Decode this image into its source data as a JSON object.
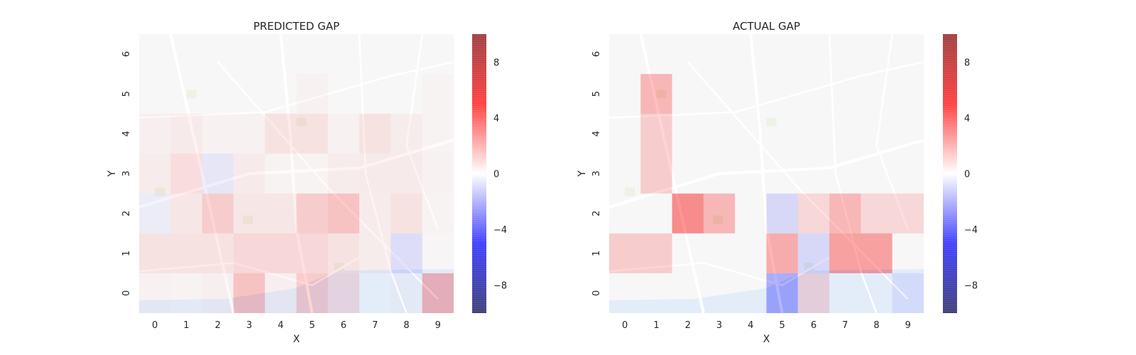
{
  "chart_data": [
    {
      "type": "heatmap",
      "title": "PREDICTED GAP",
      "xlabel": "X",
      "ylabel": "Y",
      "x_ticks": [
        0,
        1,
        2,
        3,
        4,
        5,
        6,
        7,
        8,
        9
      ],
      "y_ticks": [
        0,
        1,
        2,
        3,
        4,
        5,
        6
      ],
      "value_range": [
        -10,
        10
      ],
      "colorbar_ticks": [
        -8,
        -4,
        0,
        4,
        8
      ],
      "colormap": "seismic",
      "background": "street-map",
      "cells": [
        {
          "x": 0,
          "y": 0,
          "value": 0.3
        },
        {
          "x": 1,
          "y": 0,
          "value": 0.2
        },
        {
          "x": 2,
          "y": 0,
          "value": 0.4
        },
        {
          "x": 3,
          "y": 0,
          "value": 2.5
        },
        {
          "x": 4,
          "y": 0,
          "value": 0.4
        },
        {
          "x": 5,
          "y": 0,
          "value": 2.0
        },
        {
          "x": 6,
          "y": 0,
          "value": 1.2
        },
        {
          "x": 7,
          "y": 0,
          "value": 0.0
        },
        {
          "x": 8,
          "y": 0,
          "value": 0.2
        },
        {
          "x": 9,
          "y": 0,
          "value": 3.0
        },
        {
          "x": 0,
          "y": 1,
          "value": 1.0
        },
        {
          "x": 1,
          "y": 1,
          "value": 1.0
        },
        {
          "x": 2,
          "y": 1,
          "value": 1.0
        },
        {
          "x": 3,
          "y": 1,
          "value": 1.5
        },
        {
          "x": 4,
          "y": 1,
          "value": 1.5
        },
        {
          "x": 5,
          "y": 1,
          "value": 1.5
        },
        {
          "x": 6,
          "y": 1,
          "value": 1.0
        },
        {
          "x": 7,
          "y": 1,
          "value": 0.5
        },
        {
          "x": 8,
          "y": 1,
          "value": -1.2
        },
        {
          "x": 9,
          "y": 1,
          "value": 0.1
        },
        {
          "x": 0,
          "y": 2,
          "value": -0.5
        },
        {
          "x": 1,
          "y": 2,
          "value": 0.8
        },
        {
          "x": 2,
          "y": 2,
          "value": 2.0
        },
        {
          "x": 3,
          "y": 2,
          "value": 0.8
        },
        {
          "x": 4,
          "y": 2,
          "value": 0.8
        },
        {
          "x": 5,
          "y": 2,
          "value": 2.0
        },
        {
          "x": 6,
          "y": 2,
          "value": 2.5
        },
        {
          "x": 7,
          "y": 2,
          "value": 0.5
        },
        {
          "x": 8,
          "y": 2,
          "value": 1.0
        },
        {
          "x": 9,
          "y": 2,
          "value": 0.2
        },
        {
          "x": 0,
          "y": 3,
          "value": 0.5
        },
        {
          "x": 1,
          "y": 3,
          "value": 1.2
        },
        {
          "x": 2,
          "y": 3,
          "value": -0.8
        },
        {
          "x": 3,
          "y": 3,
          "value": 0.6
        },
        {
          "x": 4,
          "y": 3,
          "value": 0.2
        },
        {
          "x": 5,
          "y": 3,
          "value": 0.2
        },
        {
          "x": 6,
          "y": 3,
          "value": 0.5
        },
        {
          "x": 7,
          "y": 3,
          "value": 0.6
        },
        {
          "x": 8,
          "y": 3,
          "value": 0.6
        },
        {
          "x": 9,
          "y": 3,
          "value": 0.3
        },
        {
          "x": 0,
          "y": 4,
          "value": 0.4
        },
        {
          "x": 1,
          "y": 4,
          "value": 0.6
        },
        {
          "x": 2,
          "y": 4,
          "value": 0.3
        },
        {
          "x": 3,
          "y": 4,
          "value": 0.3
        },
        {
          "x": 4,
          "y": 4,
          "value": 1.0
        },
        {
          "x": 5,
          "y": 4,
          "value": 1.0
        },
        {
          "x": 6,
          "y": 4,
          "value": 0.3
        },
        {
          "x": 7,
          "y": 4,
          "value": 1.0
        },
        {
          "x": 8,
          "y": 4,
          "value": 0.5
        },
        {
          "x": 9,
          "y": 4,
          "value": 0.2
        },
        {
          "x": 0,
          "y": 5,
          "value": 0.0
        },
        {
          "x": 1,
          "y": 5,
          "value": 0.0
        },
        {
          "x": 2,
          "y": 5,
          "value": 0.0
        },
        {
          "x": 3,
          "y": 5,
          "value": 0.0
        },
        {
          "x": 4,
          "y": 5,
          "value": 0.0
        },
        {
          "x": 5,
          "y": 5,
          "value": 0.3
        },
        {
          "x": 6,
          "y": 5,
          "value": 0.0
        },
        {
          "x": 7,
          "y": 5,
          "value": 0.0
        },
        {
          "x": 8,
          "y": 5,
          "value": 0.0
        },
        {
          "x": 9,
          "y": 5,
          "value": 0.2
        },
        {
          "x": 0,
          "y": 6,
          "value": 0.0
        },
        {
          "x": 1,
          "y": 6,
          "value": 0.0
        },
        {
          "x": 2,
          "y": 6,
          "value": 0.0
        },
        {
          "x": 3,
          "y": 6,
          "value": 0.0
        },
        {
          "x": 4,
          "y": 6,
          "value": 0.0
        },
        {
          "x": 5,
          "y": 6,
          "value": 0.0
        },
        {
          "x": 6,
          "y": 6,
          "value": 0.0
        },
        {
          "x": 7,
          "y": 6,
          "value": 0.0
        },
        {
          "x": 8,
          "y": 6,
          "value": 0.0
        },
        {
          "x": 9,
          "y": 6,
          "value": 0.0
        }
      ]
    },
    {
      "type": "heatmap",
      "title": "ACTUAL GAP",
      "xlabel": "X",
      "ylabel": "Y",
      "x_ticks": [
        0,
        1,
        2,
        3,
        4,
        5,
        6,
        7,
        8,
        9
      ],
      "y_ticks": [
        0,
        1,
        2,
        3,
        4,
        5,
        6
      ],
      "value_range": [
        -10,
        10
      ],
      "colorbar_ticks": [
        -8,
        -4,
        0,
        4,
        8
      ],
      "colormap": "seismic",
      "background": "street-map",
      "cells": [
        {
          "x": 0,
          "y": 0,
          "value": 0.0
        },
        {
          "x": 1,
          "y": 0,
          "value": 0.0
        },
        {
          "x": 2,
          "y": 0,
          "value": 0.0
        },
        {
          "x": 3,
          "y": 0,
          "value": 0.0
        },
        {
          "x": 4,
          "y": 0,
          "value": 0.0
        },
        {
          "x": 5,
          "y": 0,
          "value": -3.5
        },
        {
          "x": 6,
          "y": 0,
          "value": 1.5
        },
        {
          "x": 7,
          "y": 0,
          "value": 0.0
        },
        {
          "x": 8,
          "y": 0,
          "value": 0.0
        },
        {
          "x": 9,
          "y": 0,
          "value": -0.8
        },
        {
          "x": 0,
          "y": 1,
          "value": 2.0
        },
        {
          "x": 1,
          "y": 1,
          "value": 2.0
        },
        {
          "x": 2,
          "y": 1,
          "value": 0.0
        },
        {
          "x": 3,
          "y": 1,
          "value": 0.0
        },
        {
          "x": 4,
          "y": 1,
          "value": 0.0
        },
        {
          "x": 5,
          "y": 1,
          "value": 3.5
        },
        {
          "x": 6,
          "y": 1,
          "value": -1.5
        },
        {
          "x": 7,
          "y": 1,
          "value": 4.0
        },
        {
          "x": 8,
          "y": 1,
          "value": 4.0
        },
        {
          "x": 9,
          "y": 1,
          "value": 0.0
        },
        {
          "x": 0,
          "y": 2,
          "value": 0.0
        },
        {
          "x": 1,
          "y": 2,
          "value": 0.0
        },
        {
          "x": 2,
          "y": 2,
          "value": 5.0
        },
        {
          "x": 3,
          "y": 2,
          "value": 3.0
        },
        {
          "x": 4,
          "y": 2,
          "value": 0.0
        },
        {
          "x": 5,
          "y": 2,
          "value": -1.5
        },
        {
          "x": 6,
          "y": 2,
          "value": 1.5
        },
        {
          "x": 7,
          "y": 2,
          "value": 3.0
        },
        {
          "x": 8,
          "y": 2,
          "value": 1.5
        },
        {
          "x": 9,
          "y": 2,
          "value": 1.5
        },
        {
          "x": 0,
          "y": 3,
          "value": 0.0
        },
        {
          "x": 1,
          "y": 3,
          "value": 2.0
        },
        {
          "x": 2,
          "y": 3,
          "value": 0.0
        },
        {
          "x": 3,
          "y": 3,
          "value": 0.0
        },
        {
          "x": 4,
          "y": 3,
          "value": 0.0
        },
        {
          "x": 5,
          "y": 3,
          "value": 0.0
        },
        {
          "x": 6,
          "y": 3,
          "value": 0.0
        },
        {
          "x": 7,
          "y": 3,
          "value": 0.0
        },
        {
          "x": 8,
          "y": 3,
          "value": 0.0
        },
        {
          "x": 9,
          "y": 3,
          "value": 0.0
        },
        {
          "x": 0,
          "y": 4,
          "value": 0.0
        },
        {
          "x": 1,
          "y": 4,
          "value": 2.0
        },
        {
          "x": 2,
          "y": 4,
          "value": 0.0
        },
        {
          "x": 3,
          "y": 4,
          "value": 0.0
        },
        {
          "x": 4,
          "y": 4,
          "value": 0.0
        },
        {
          "x": 5,
          "y": 4,
          "value": 0.0
        },
        {
          "x": 6,
          "y": 4,
          "value": 0.0
        },
        {
          "x": 7,
          "y": 4,
          "value": 0.0
        },
        {
          "x": 8,
          "y": 4,
          "value": 0.0
        },
        {
          "x": 9,
          "y": 4,
          "value": 0.0
        },
        {
          "x": 0,
          "y": 5,
          "value": 0.0
        },
        {
          "x": 1,
          "y": 5,
          "value": 3.0
        },
        {
          "x": 2,
          "y": 5,
          "value": 0.0
        },
        {
          "x": 3,
          "y": 5,
          "value": 0.0
        },
        {
          "x": 4,
          "y": 5,
          "value": 0.0
        },
        {
          "x": 5,
          "y": 5,
          "value": 0.0
        },
        {
          "x": 6,
          "y": 5,
          "value": 0.0
        },
        {
          "x": 7,
          "y": 5,
          "value": 0.0
        },
        {
          "x": 8,
          "y": 5,
          "value": 0.0
        },
        {
          "x": 9,
          "y": 5,
          "value": 0.0
        },
        {
          "x": 0,
          "y": 6,
          "value": 0.0
        },
        {
          "x": 1,
          "y": 6,
          "value": 0.0
        },
        {
          "x": 2,
          "y": 6,
          "value": 0.0
        },
        {
          "x": 3,
          "y": 6,
          "value": 0.0
        },
        {
          "x": 4,
          "y": 6,
          "value": 0.0
        },
        {
          "x": 5,
          "y": 6,
          "value": 0.0
        },
        {
          "x": 6,
          "y": 6,
          "value": 0.0
        },
        {
          "x": 7,
          "y": 6,
          "value": 0.0
        },
        {
          "x": 8,
          "y": 6,
          "value": 0.0
        },
        {
          "x": 9,
          "y": 6,
          "value": 0.0
        }
      ]
    }
  ],
  "colors": {
    "map_background": "#f2f2f2",
    "map_roads": "#ffffff",
    "map_water": "#cfe0f7",
    "text": "#262626"
  }
}
